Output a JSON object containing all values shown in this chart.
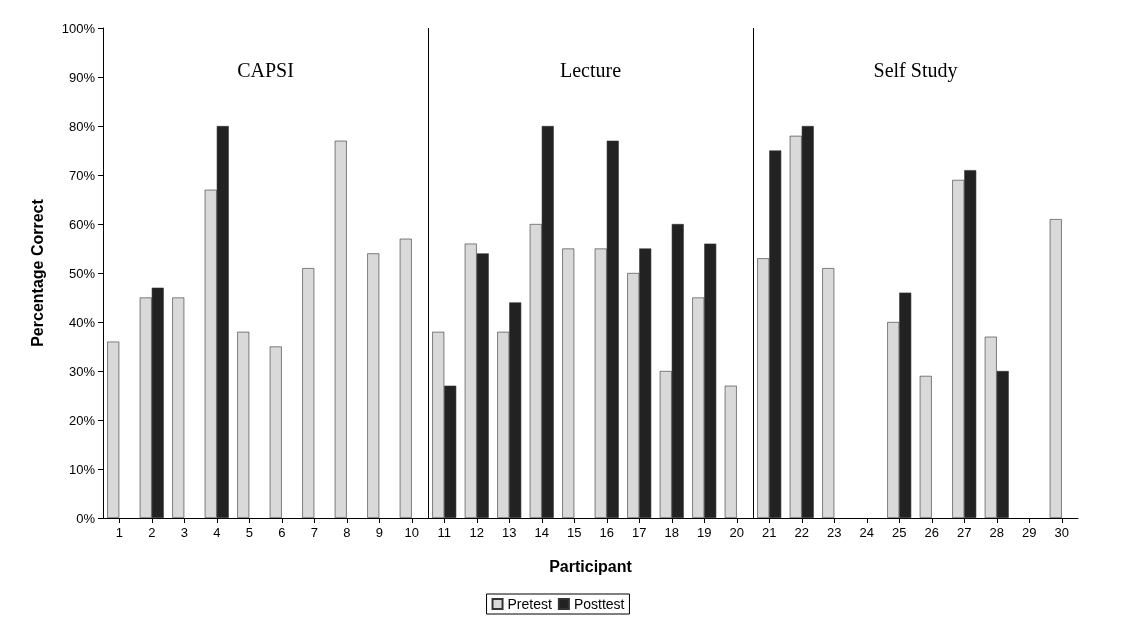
{
  "chart_data": {
    "type": "bar",
    "xlabel": "Participant",
    "ylabel": "Percentage Correct",
    "x": [
      1,
      2,
      3,
      4,
      5,
      6,
      7,
      8,
      9,
      10,
      11,
      12,
      13,
      14,
      15,
      16,
      17,
      18,
      19,
      20,
      21,
      22,
      23,
      24,
      25,
      26,
      27,
      28,
      29,
      30
    ],
    "xlim": [
      0.5,
      30.5
    ],
    "xticks": [
      1,
      2,
      3,
      4,
      5,
      6,
      7,
      8,
      9,
      10,
      11,
      12,
      13,
      14,
      15,
      16,
      17,
      18,
      19,
      20,
      21,
      22,
      23,
      24,
      25,
      26,
      27,
      28,
      29,
      30
    ],
    "ylim": [
      0,
      100
    ],
    "yticks": [
      {
        "value": 0,
        "label": "0%"
      },
      {
        "value": 10,
        "label": "10%"
      },
      {
        "value": 20,
        "label": "20%"
      },
      {
        "value": 30,
        "label": "30%"
      },
      {
        "value": 40,
        "label": "40%"
      },
      {
        "value": 50,
        "label": "50%"
      },
      {
        "value": 60,
        "label": "60%"
      },
      {
        "value": 70,
        "label": "70%"
      },
      {
        "value": 80,
        "label": "80%"
      },
      {
        "value": 90,
        "label": "90%"
      },
      {
        "value": 100,
        "label": "100%"
      }
    ],
    "series": [
      {
        "name": "Pretest",
        "color": "#d9d9d9",
        "values": [
          36,
          45,
          45,
          67,
          38,
          35,
          51,
          77,
          54,
          57,
          38,
          56,
          38,
          60,
          55,
          55,
          50,
          30,
          45,
          27,
          53,
          78,
          51,
          null,
          40,
          29,
          69,
          37,
          null,
          61
        ]
      },
      {
        "name": "Posttest",
        "color": "#222222",
        "values": [
          null,
          47,
          null,
          80,
          null,
          null,
          null,
          null,
          null,
          null,
          27,
          54,
          44,
          80,
          null,
          77,
          55,
          60,
          56,
          null,
          75,
          80,
          null,
          null,
          46,
          null,
          71,
          30,
          null,
          null
        ]
      }
    ],
    "ref_lines": [
      {
        "axis": "x",
        "value": 10.5,
        "color": "#000000"
      },
      {
        "axis": "x",
        "value": 20.5,
        "color": "#000000"
      }
    ],
    "annotations": [
      "CAPSI",
      "Lecture",
      "Self Study"
    ],
    "legend": "bottom",
    "grid": false
  }
}
